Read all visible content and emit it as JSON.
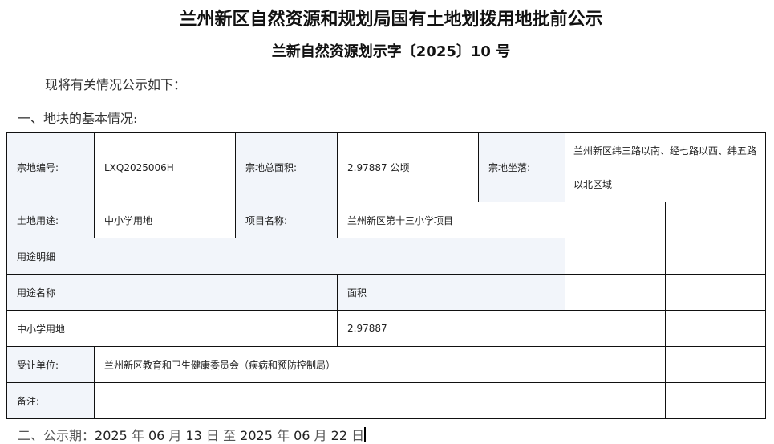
{
  "title": "兰州新区自然资源和规划局国有土地划拨用地批前公示",
  "subtitle": "兰新自然资源划示字〔2025〕10 号",
  "intro": "现将有关情况公示如下：",
  "section1": "一、地块的基本情况:",
  "table": {
    "parcel_no_label": "宗地编号:",
    "parcel_no": "LXQ2025006H",
    "area_label": "宗地总面积:",
    "area": "2.97887 公顷",
    "location_label": "宗地坐落:",
    "location": " 兰州新区纬三路以南、经七路以西、纬五路以北区域",
    "use_label": "土地用途:",
    "use": "中小学用地",
    "project_label": "项目名称:",
    "project": "兰州新区第十三小学项目",
    "use_detail_label": "用途明细",
    "use_name_header": "用途名称",
    "area_header": "面积",
    "detail_use_name": "中小学用地",
    "detail_area": "2.97887",
    "grantee_label": "受让单位:",
    "grantee": "兰州新区教育和卫生健康委员会（疾病和预防控制局）",
    "remarks_label": "备注:",
    "remarks": ""
  },
  "section2": {
    "prefix": "二、公示期：",
    "start_year": "2025",
    "start_month": "06",
    "start_day": "13",
    "to": "至",
    "end_year": "2025",
    "end_month": "06",
    "end_day": "22",
    "year": "年",
    "month": "月",
    "day": "日"
  }
}
